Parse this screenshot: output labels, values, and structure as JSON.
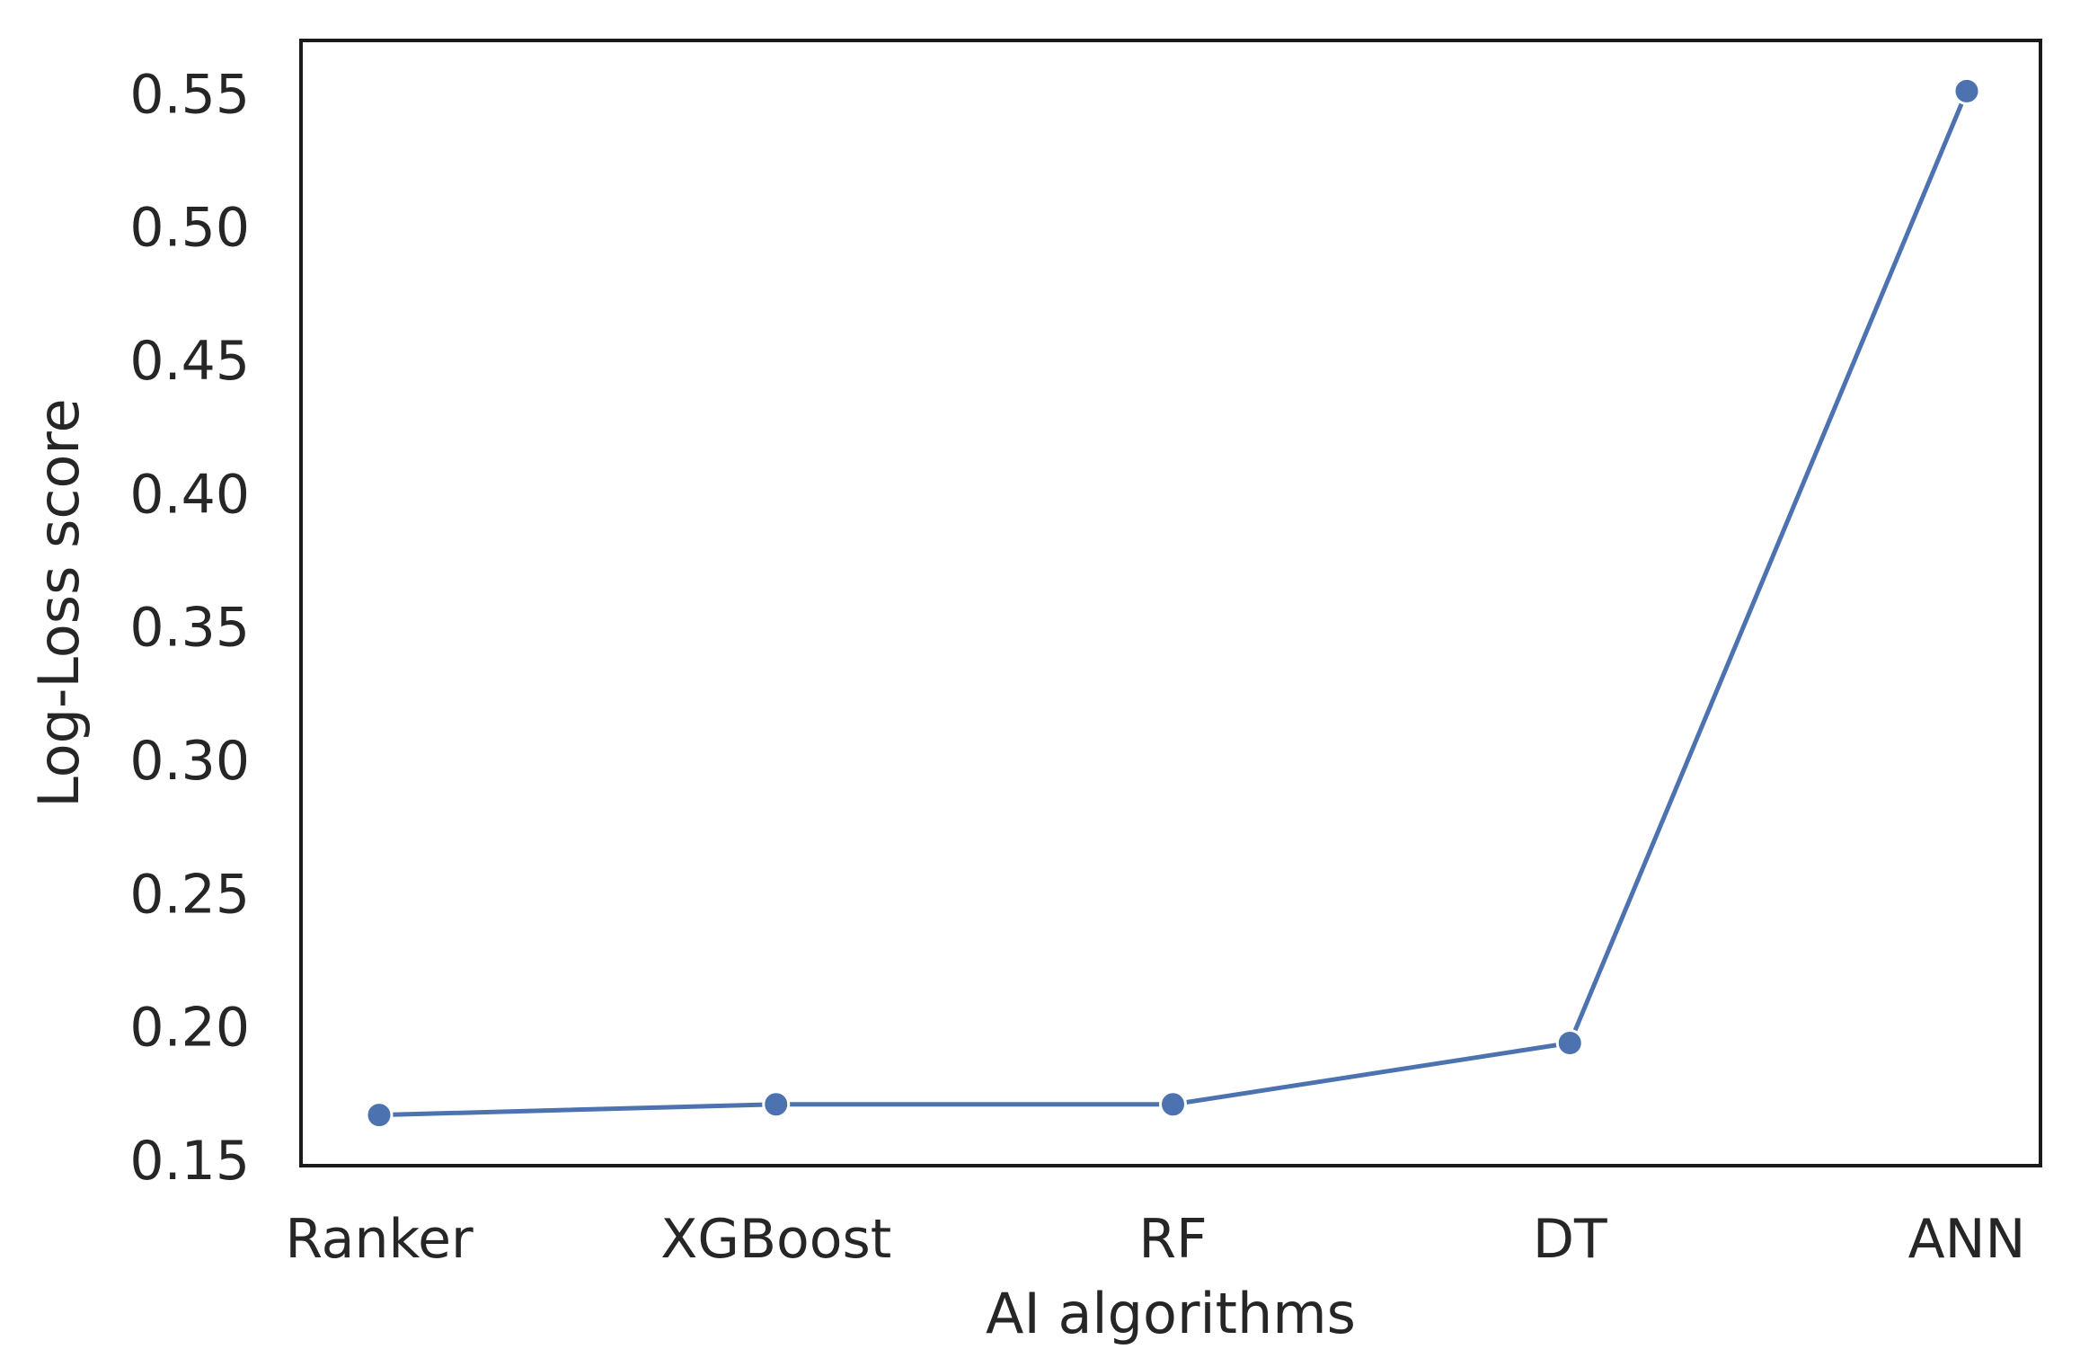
{
  "chart_data": {
    "type": "line",
    "categories": [
      "Ranker",
      "XGBoost",
      "RF",
      "DT",
      "ANN"
    ],
    "series": [
      {
        "values": [
          0.167,
          0.171,
          0.171,
          0.194,
          0.551
        ],
        "color": "#4c72b0",
        "marker": "circle"
      }
    ],
    "title": "",
    "xlabel": "AI algorithms",
    "ylabel": "Log-Loss score",
    "ylim": [
      0.148,
      0.57
    ],
    "yticks": [
      0.15,
      0.2,
      0.25,
      0.3,
      0.35,
      0.4,
      0.45,
      0.5,
      0.55
    ],
    "ytick_labels": [
      "0.15",
      "0.20",
      "0.25",
      "0.30",
      "0.35",
      "0.40",
      "0.45",
      "0.50",
      "0.55"
    ],
    "grid": false,
    "legend": "none"
  }
}
